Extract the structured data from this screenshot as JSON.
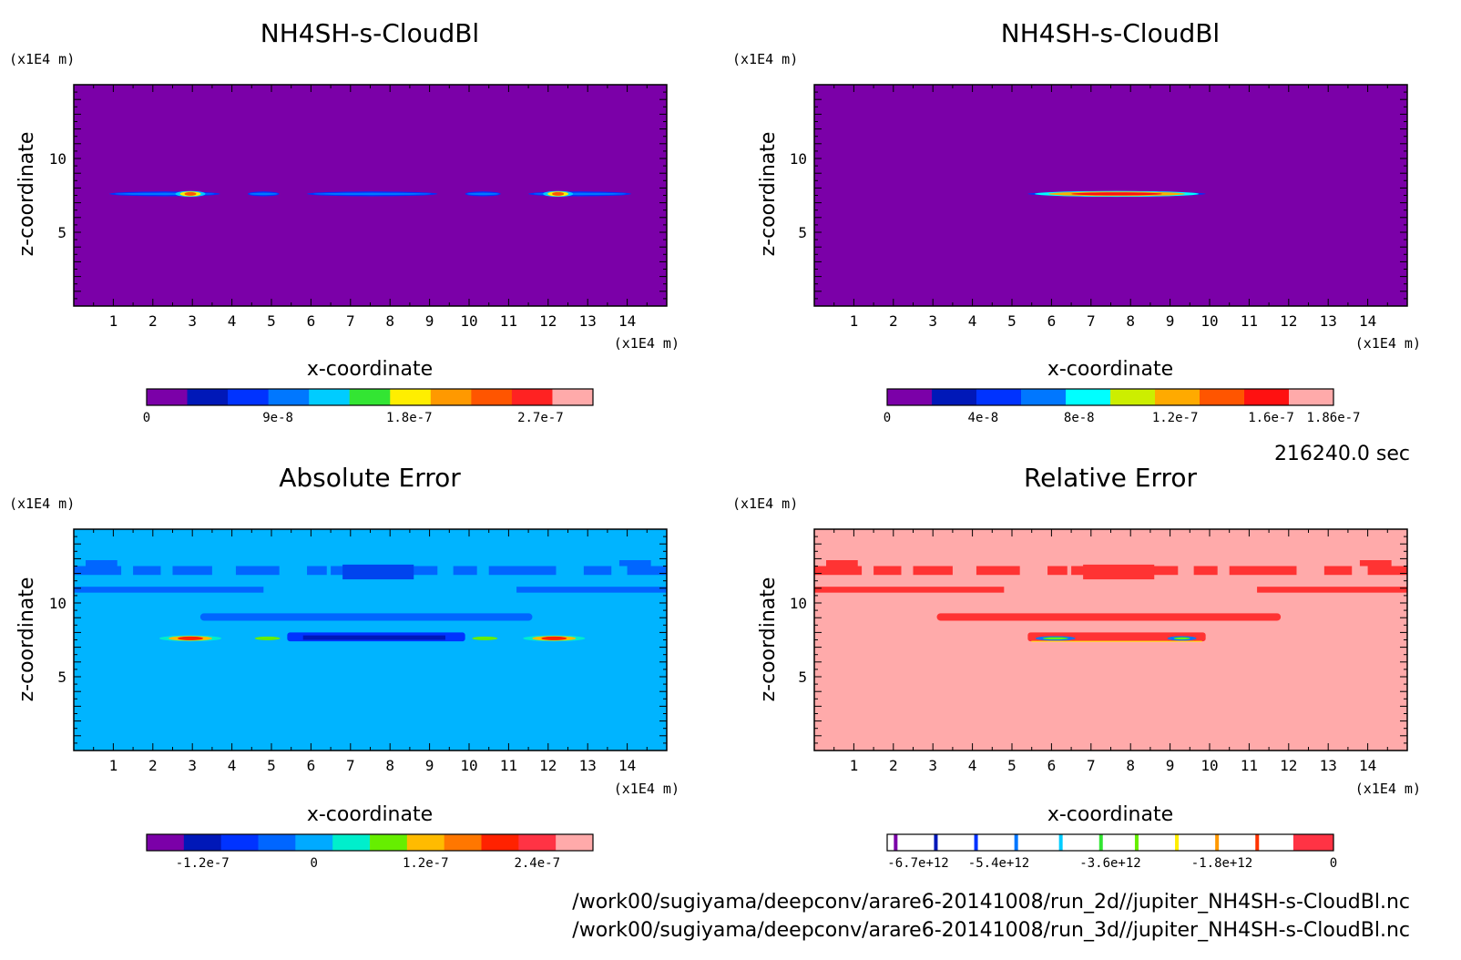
{
  "time_label": "216240.0 sec",
  "file_paths": [
    "/work00/sugiyama/deepconv/arare6-20141008/run_2d//jupiter_NH4SH-s-CloudBl.nc",
    "/work00/sugiyama/deepconv/arare6-20141008/run_3d//jupiter_NH4SH-s-CloudBl.nc"
  ],
  "chart_data": [
    {
      "type": "heatmap",
      "title": "NH4SH-s-CloudBl",
      "xlabel": "x-coordinate",
      "ylabel": "z-coordinate",
      "x_unit": "(x1E4 m)",
      "y_unit": "(x1E4 m)",
      "xlim": [
        0,
        15
      ],
      "ylim": [
        0,
        15
      ],
      "x_ticks": [
        1,
        2,
        3,
        4,
        5,
        6,
        7,
        8,
        9,
        10,
        11,
        12,
        13,
        14
      ],
      "y_ticks": [
        5,
        10
      ],
      "background_color": "#7b00a8",
      "colorbar": {
        "colors": [
          "#7b00a8",
          "#0018b8",
          "#0033ff",
          "#0077ff",
          "#00ccff",
          "#33e533",
          "#ffee00",
          "#ff9900",
          "#ff5500",
          "#ff2222",
          "#ffaaaa"
        ],
        "tick_labels": [
          "0",
          "9e-8",
          "1.8e-7",
          "2.7e-7"
        ],
        "tick_positions": [
          0,
          9e-08,
          1.8e-07,
          2.7e-07
        ],
        "range": [
          0,
          3.06e-07
        ]
      },
      "features": [
        {
          "x": [
            0.9,
            3.7
          ],
          "z": 7.6,
          "peak": [
            2.8,
            3.1
          ]
        },
        {
          "x": [
            4.4,
            5.2
          ],
          "z": 7.6
        },
        {
          "x": [
            5.9,
            9.2
          ],
          "z": 7.6
        },
        {
          "x": [
            9.9,
            10.8
          ],
          "z": 7.6
        },
        {
          "x": [
            11.5,
            14.1
          ],
          "z": 7.6,
          "peak": [
            12.1,
            12.4
          ]
        }
      ]
    },
    {
      "type": "heatmap",
      "title": "NH4SH-s-CloudBl",
      "xlabel": "x-coordinate",
      "ylabel": "z-coordinate",
      "x_unit": "(x1E4 m)",
      "y_unit": "(x1E4 m)",
      "xlim": [
        0,
        15
      ],
      "ylim": [
        0,
        15
      ],
      "x_ticks": [
        1,
        2,
        3,
        4,
        5,
        6,
        7,
        8,
        9,
        10,
        11,
        12,
        13,
        14
      ],
      "y_ticks": [
        5,
        10
      ],
      "background_color": "#7b00a8",
      "colorbar": {
        "colors": [
          "#7b00a8",
          "#0018b8",
          "#0033ff",
          "#0077ff",
          "#00ffff",
          "#ccee00",
          "#ffaa00",
          "#ff5500",
          "#ff1111",
          "#ffaaaa"
        ],
        "tick_labels": [
          "0",
          "4e-8",
          "8e-8",
          "1.2e-7",
          "1.6e-7",
          "1.86e-7"
        ],
        "tick_positions": [
          0,
          4e-08,
          8e-08,
          1.2e-07,
          1.6e-07,
          1.86e-07
        ],
        "range": [
          0,
          1.86e-07
        ]
      },
      "features": [
        {
          "x": [
            5.4,
            9.9
          ],
          "z": 7.6,
          "peak": [
            6.5,
            8.8
          ]
        }
      ]
    },
    {
      "type": "heatmap",
      "title": "Absolute Error",
      "xlabel": "x-coordinate",
      "ylabel": "z-coordinate",
      "x_unit": "(x1E4 m)",
      "y_unit": "(x1E4 m)",
      "xlim": [
        0,
        15
      ],
      "ylim": [
        0,
        15
      ],
      "x_ticks": [
        1,
        2,
        3,
        4,
        5,
        6,
        7,
        8,
        9,
        10,
        11,
        12,
        13,
        14
      ],
      "y_ticks": [
        5,
        10
      ],
      "background_color": "#00b4ff",
      "colorbar": {
        "colors": [
          "#7b00a8",
          "#0018b8",
          "#0033ff",
          "#0066ff",
          "#00aaff",
          "#00eecc",
          "#66ee00",
          "#ffbb00",
          "#ff7700",
          "#ff2200",
          "#ff3344",
          "#ffaaaa"
        ],
        "tick_labels": [
          "-1.2e-7",
          "0",
          "1.2e-7",
          "2.4e-7"
        ],
        "tick_positions": [
          -1.2e-07,
          0,
          1.2e-07,
          2.4e-07
        ],
        "range": [
          -1.8e-07,
          3e-07
        ]
      },
      "features": [
        {
          "x": [
            0,
            15
          ],
          "z": [
            10.8,
            13.2
          ],
          "kind": "upper-band"
        },
        {
          "x": [
            3.2,
            11.6
          ],
          "z": [
            8.8,
            9.3
          ],
          "kind": "mid-band"
        },
        {
          "x": [
            5.4,
            9.9
          ],
          "z": [
            7.4,
            8.0
          ],
          "kind": "negative-core"
        },
        {
          "x": [
            2.6,
            3.3
          ],
          "z": 7.6,
          "kind": "positive-peak"
        },
        {
          "x": [
            11.7,
            12.6
          ],
          "z": 7.6,
          "kind": "positive-peak"
        }
      ]
    },
    {
      "type": "heatmap",
      "title": "Relative Error",
      "xlabel": "x-coordinate",
      "ylabel": "z-coordinate",
      "x_unit": "(x1E4 m)",
      "y_unit": "(x1E4 m)",
      "xlim": [
        0,
        15
      ],
      "ylim": [
        0,
        15
      ],
      "x_ticks": [
        1,
        2,
        3,
        4,
        5,
        6,
        7,
        8,
        9,
        10,
        11,
        12,
        13,
        14
      ],
      "y_ticks": [
        5,
        10
      ],
      "background_color": "#ffaaaa",
      "colorbar": {
        "colors": [
          "#ffffff"
        ],
        "marker_colors": [
          "#7b00a8",
          "#0018b8",
          "#0033ff",
          "#0077ff",
          "#00ccff",
          "#33e533",
          "#66ee00",
          "#ffee00",
          "#ff9900",
          "#ff3300",
          "#ff3344"
        ],
        "tick_labels": [
          "-6.7e+12",
          "-5.4e+12",
          "-3.6e+12",
          "-1.8e+12",
          "0"
        ],
        "tick_positions": [
          -6700000000000.0,
          -5400000000000.0,
          -3600000000000.0,
          -1800000000000.0,
          0
        ],
        "range": [
          -7200000000000.0,
          0
        ]
      },
      "features": [
        {
          "x": [
            0,
            15
          ],
          "z": [
            10.8,
            13.2
          ],
          "kind": "upper-band"
        },
        {
          "x": [
            3.1,
            11.8
          ],
          "z": [
            8.8,
            9.3
          ],
          "kind": "mid-band"
        },
        {
          "x": [
            5.4,
            9.9
          ],
          "z": [
            7.4,
            8.0
          ],
          "kind": "core"
        }
      ]
    }
  ]
}
